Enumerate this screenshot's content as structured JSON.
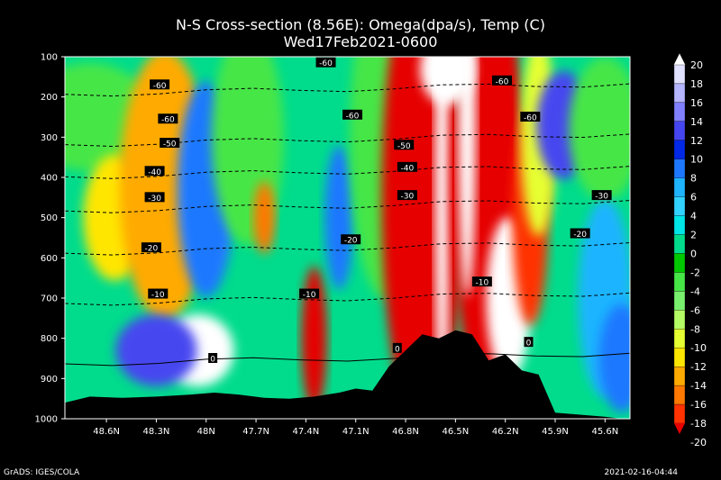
{
  "chart_data": {
    "type": "heatmap",
    "title": "N-S Cross-section (8.56E): Omega(dpa/s), Temp (C)",
    "subtitle": "Wed17Feb2021-0600",
    "xlabel": "",
    "ylabel": "",
    "x_ticks": [
      "48.6N",
      "48.3N",
      "48N",
      "47.7N",
      "47.4N",
      "47.1N",
      "46.8N",
      "46.5N",
      "46.2N",
      "45.9N",
      "45.6N"
    ],
    "y_ticks": [
      "100",
      "200",
      "300",
      "400",
      "500",
      "600",
      "700",
      "800",
      "900",
      "1000"
    ],
    "ylim": [
      1000,
      100
    ],
    "colorbar": {
      "labels": [
        "20",
        "18",
        "16",
        "14",
        "12",
        "10",
        "8",
        "6",
        "4",
        "2",
        "0",
        "-2",
        "-4",
        "-6",
        "-8",
        "-10",
        "-12",
        "-14",
        "-16",
        "-18",
        "-20"
      ],
      "colors": [
        "#ffffff",
        "#e0e0ff",
        "#b4b4ff",
        "#8080ff",
        "#4646f0",
        "#0028e6",
        "#1e78ff",
        "#1eb4ff",
        "#32d2ff",
        "#00e6e6",
        "#00dc8c",
        "#00c800",
        "#46e646",
        "#78f06e",
        "#b4fa64",
        "#e6ff32",
        "#ffe600",
        "#ffaa00",
        "#ff7800",
        "#ff3200",
        "#e60000"
      ]
    },
    "temperature_contours": [
      {
        "label": "-60",
        "pressure": 180
      },
      {
        "label": "-50",
        "pressure": 305
      },
      {
        "label": "-40",
        "pressure": 385
      },
      {
        "label": "-30",
        "pressure": 470
      },
      {
        "label": "-20",
        "pressure": 575
      },
      {
        "label": "-10",
        "pressure": 700
      },
      {
        "label": "0",
        "pressure": 850
      }
    ],
    "contour_label_positions": [
      {
        "text": "-60",
        "lat": 48.28,
        "p": 170
      },
      {
        "text": "-60",
        "lat": 48.23,
        "p": 255
      },
      {
        "text": "-60",
        "lat": 47.28,
        "p": 115
      },
      {
        "text": "-60",
        "lat": 47.12,
        "p": 245
      },
      {
        "text": "-60",
        "lat": 46.22,
        "p": 160
      },
      {
        "text": "-60",
        "lat": 46.05,
        "p": 250
      },
      {
        "text": "-50",
        "lat": 48.22,
        "p": 315
      },
      {
        "text": "-50",
        "lat": 46.81,
        "p": 320
      },
      {
        "text": "-40",
        "lat": 48.31,
        "p": 385
      },
      {
        "text": "-40",
        "lat": 46.79,
        "p": 375
      },
      {
        "text": "-30",
        "lat": 48.31,
        "p": 450
      },
      {
        "text": "-30",
        "lat": 46.79,
        "p": 445
      },
      {
        "text": "-30",
        "lat": 45.62,
        "p": 445
      },
      {
        "text": "-20",
        "lat": 48.33,
        "p": 575
      },
      {
        "text": "-20",
        "lat": 47.13,
        "p": 555
      },
      {
        "text": "-20",
        "lat": 45.75,
        "p": 540
      },
      {
        "text": "-10",
        "lat": 48.29,
        "p": 690
      },
      {
        "text": "-10",
        "lat": 47.38,
        "p": 690
      },
      {
        "text": "-10",
        "lat": 46.34,
        "p": 660
      },
      {
        "text": "0",
        "lat": 47.96,
        "p": 850
      },
      {
        "text": "0",
        "lat": 46.85,
        "p": 825
      },
      {
        "text": "0",
        "lat": 46.06,
        "p": 810
      }
    ],
    "x_tick_lat": [
      48.6,
      48.3,
      48.0,
      47.7,
      47.4,
      47.1,
      46.8,
      46.5,
      46.2,
      45.9,
      45.6
    ],
    "lat_range": [
      48.85,
      45.45
    ],
    "terrain_surface_pressure": [
      [
        48.85,
        960
      ],
      [
        48.7,
        945
      ],
      [
        48.5,
        948
      ],
      [
        48.3,
        945
      ],
      [
        48.1,
        940
      ],
      [
        47.95,
        935
      ],
      [
        47.8,
        940
      ],
      [
        47.65,
        948
      ],
      [
        47.5,
        950
      ],
      [
        47.35,
        945
      ],
      [
        47.2,
        935
      ],
      [
        47.1,
        925
      ],
      [
        47.0,
        930
      ],
      [
        46.9,
        870
      ],
      [
        46.8,
        830
      ],
      [
        46.7,
        790
      ],
      [
        46.6,
        800
      ],
      [
        46.5,
        780
      ],
      [
        46.4,
        790
      ],
      [
        46.3,
        855
      ],
      [
        46.2,
        840
      ],
      [
        46.1,
        880
      ],
      [
        46.0,
        890
      ],
      [
        45.9,
        985
      ],
      [
        45.75,
        990
      ],
      [
        45.6,
        995
      ],
      [
        45.5,
        1000
      ]
    ],
    "grid": false
  },
  "footer": {
    "left": "GrADS: IGES/COLA",
    "right": "2021-02-16-04:44"
  }
}
